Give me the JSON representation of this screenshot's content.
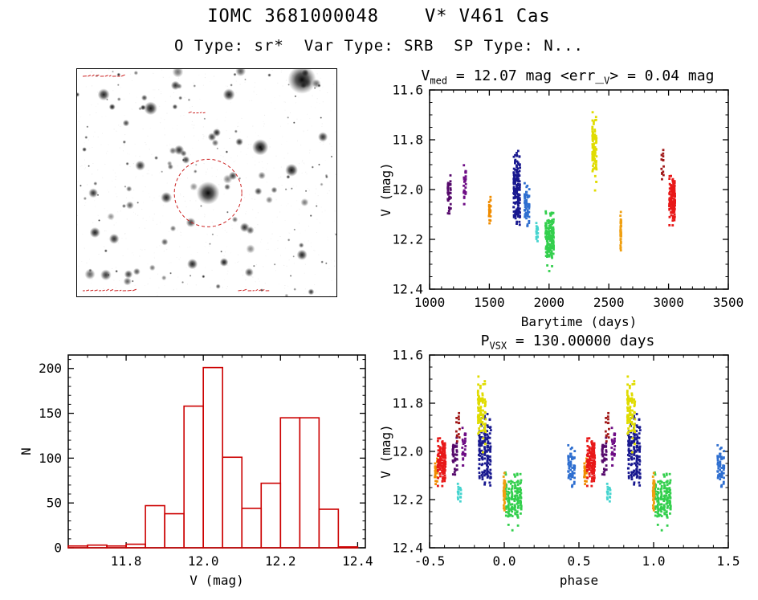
{
  "page": {
    "title": "IOMC 3681000048    V* V461 Cas",
    "subtitle": "O Type: sr*  Var Type: SRB  SP Type: N..."
  },
  "lc_title": {
    "p1": "V",
    "sub1": "med",
    "p2": " = 12.07 mag <err_",
    "sub2": "V",
    "p3": "> = 0.04 mag"
  },
  "phase_title": {
    "p1": "P",
    "sub1": "VSX",
    "p2": " = 130.00000 days"
  },
  "finder": {
    "circle_color": "#cc2222",
    "annotation_color": "#cc2222",
    "border_color": "#000000"
  },
  "chart_data": [
    {
      "id": "lightcurve",
      "type": "scatter",
      "title": "V_med = 12.07 mag <err_V> = 0.04 mag",
      "v_med_mag": 12.07,
      "err_v_mag": 0.04,
      "xlabel": "Barytime (days)",
      "ylabel": "V (mag)",
      "xlim": [
        1000,
        3500
      ],
      "ylim": [
        11.6,
        12.4
      ],
      "y_inverted": true,
      "xticks": [
        1000,
        1500,
        2000,
        2500,
        3000,
        3500
      ],
      "xtick_labels": [
        "1000",
        "1500",
        "2000",
        "2500",
        "3000",
        "3500"
      ],
      "yticks": [
        11.6,
        11.8,
        12.0,
        12.2,
        12.4
      ],
      "ytick_labels": [
        "11.6",
        "11.8",
        "12.0",
        "12.2",
        "12.4"
      ],
      "x_minor": 100,
      "y_minor": 0.05,
      "clusters": [
        {
          "name": "epoch-1",
          "color": "#55096b",
          "t": 1165,
          "dt": 30,
          "cols": 3,
          "v": 12.01,
          "dv": 0.07,
          "n": 40,
          "phase": -0.33,
          "pw": 0.035
        },
        {
          "name": "epoch-2",
          "color": "#6e0d85",
          "t": 1295,
          "dt": 25,
          "cols": 2,
          "v": 11.98,
          "dv": 0.07,
          "n": 30,
          "phase": -0.27,
          "pw": 0.03
        },
        {
          "name": "epoch-3",
          "color": "#f08c00",
          "t": 1505,
          "dt": 20,
          "cols": 2,
          "v": 12.09,
          "dv": 0.05,
          "n": 25,
          "phase": -0.455,
          "pw": 0.025
        },
        {
          "name": "epoch-4",
          "color": "#18188f",
          "t": 1730,
          "dt": 60,
          "cols": 5,
          "v": 12.0,
          "dv": 0.13,
          "n": 150,
          "phase": -0.13,
          "pw": 0.09
        },
        {
          "name": "epoch-5",
          "color": "#2f6fd0",
          "t": 1815,
          "dt": 45,
          "cols": 4,
          "v": 12.05,
          "dv": 0.09,
          "n": 60,
          "phase": 0.45,
          "pw": 0.05
        },
        {
          "name": "epoch-6",
          "color": "#45d4cf",
          "t": 1900,
          "dt": 18,
          "cols": 2,
          "v": 12.17,
          "dv": 0.035,
          "n": 16,
          "phase": -0.3,
          "pw": 0.03
        },
        {
          "name": "epoch-7",
          "color": "#33cf4d",
          "t": 2005,
          "dt": 75,
          "cols": 6,
          "v": 12.2,
          "dv": 0.1,
          "n": 160,
          "phase": 0.06,
          "pw": 0.12
        },
        {
          "name": "epoch-8",
          "color": "#e0dc00",
          "t": 2380,
          "dt": 40,
          "cols": 4,
          "v": 11.85,
          "dv": 0.13,
          "n": 90,
          "phase": -0.15,
          "pw": 0.06
        },
        {
          "name": "epoch-9",
          "color": "#ef9f10",
          "t": 2600,
          "dt": 12,
          "cols": 1,
          "v": 12.17,
          "dv": 0.08,
          "n": 45,
          "phase": 0.0,
          "pw": 0.02
        },
        {
          "name": "epoch-10",
          "color": "#a01818",
          "t": 2950,
          "dt": 25,
          "cols": 2,
          "v": 11.9,
          "dv": 0.06,
          "n": 14,
          "phase": -0.31,
          "pw": 0.03
        },
        {
          "name": "epoch-11",
          "color": "#e81818",
          "t": 3030,
          "dt": 55,
          "cols": 4,
          "v": 12.04,
          "dv": 0.09,
          "n": 130,
          "phase": -0.42,
          "pw": 0.06
        }
      ]
    },
    {
      "id": "histogram",
      "type": "histogram",
      "xlabel": "V (mag)",
      "ylabel": "N",
      "xlim": [
        11.65,
        12.42
      ],
      "ylim": [
        0,
        215
      ],
      "y_inverted": false,
      "xticks": [
        11.8,
        12.0,
        12.2,
        12.4
      ],
      "xtick_labels": [
        "11.8",
        "12.0",
        "12.2",
        "12.4"
      ],
      "yticks": [
        0,
        50,
        100,
        150,
        200
      ],
      "ytick_labels": [
        "0",
        "50",
        "100",
        "150",
        "200"
      ],
      "x_minor": 0.05,
      "y_minor": 10,
      "bin_start": 11.65,
      "bin_width": 0.05,
      "counts": [
        2,
        3,
        2,
        4,
        47,
        38,
        158,
        201,
        101,
        44,
        72,
        145,
        145,
        43,
        1
      ],
      "color": "#cc0000"
    },
    {
      "id": "phase",
      "type": "scatter",
      "title": "P_VSX = 130.00000 days",
      "period_days": 130.0,
      "xlabel": "phase",
      "ylabel": "V (mag)",
      "xlim": [
        -0.5,
        1.5
      ],
      "ylim": [
        11.6,
        12.4
      ],
      "y_inverted": true,
      "xticks": [
        -0.5,
        0.0,
        0.5,
        1.0,
        1.5
      ],
      "xtick_labels": [
        "-0.5",
        "0.0",
        "0.5",
        "1.0",
        "1.5"
      ],
      "yticks": [
        11.6,
        11.8,
        12.0,
        12.2,
        12.4
      ],
      "ytick_labels": [
        "11.6",
        "11.8",
        "12.0",
        "12.2",
        "12.4"
      ],
      "x_minor": 0.1,
      "y_minor": 0.05,
      "uses_clusters_of": "lightcurve",
      "duplicate_offset": 1.0
    }
  ]
}
